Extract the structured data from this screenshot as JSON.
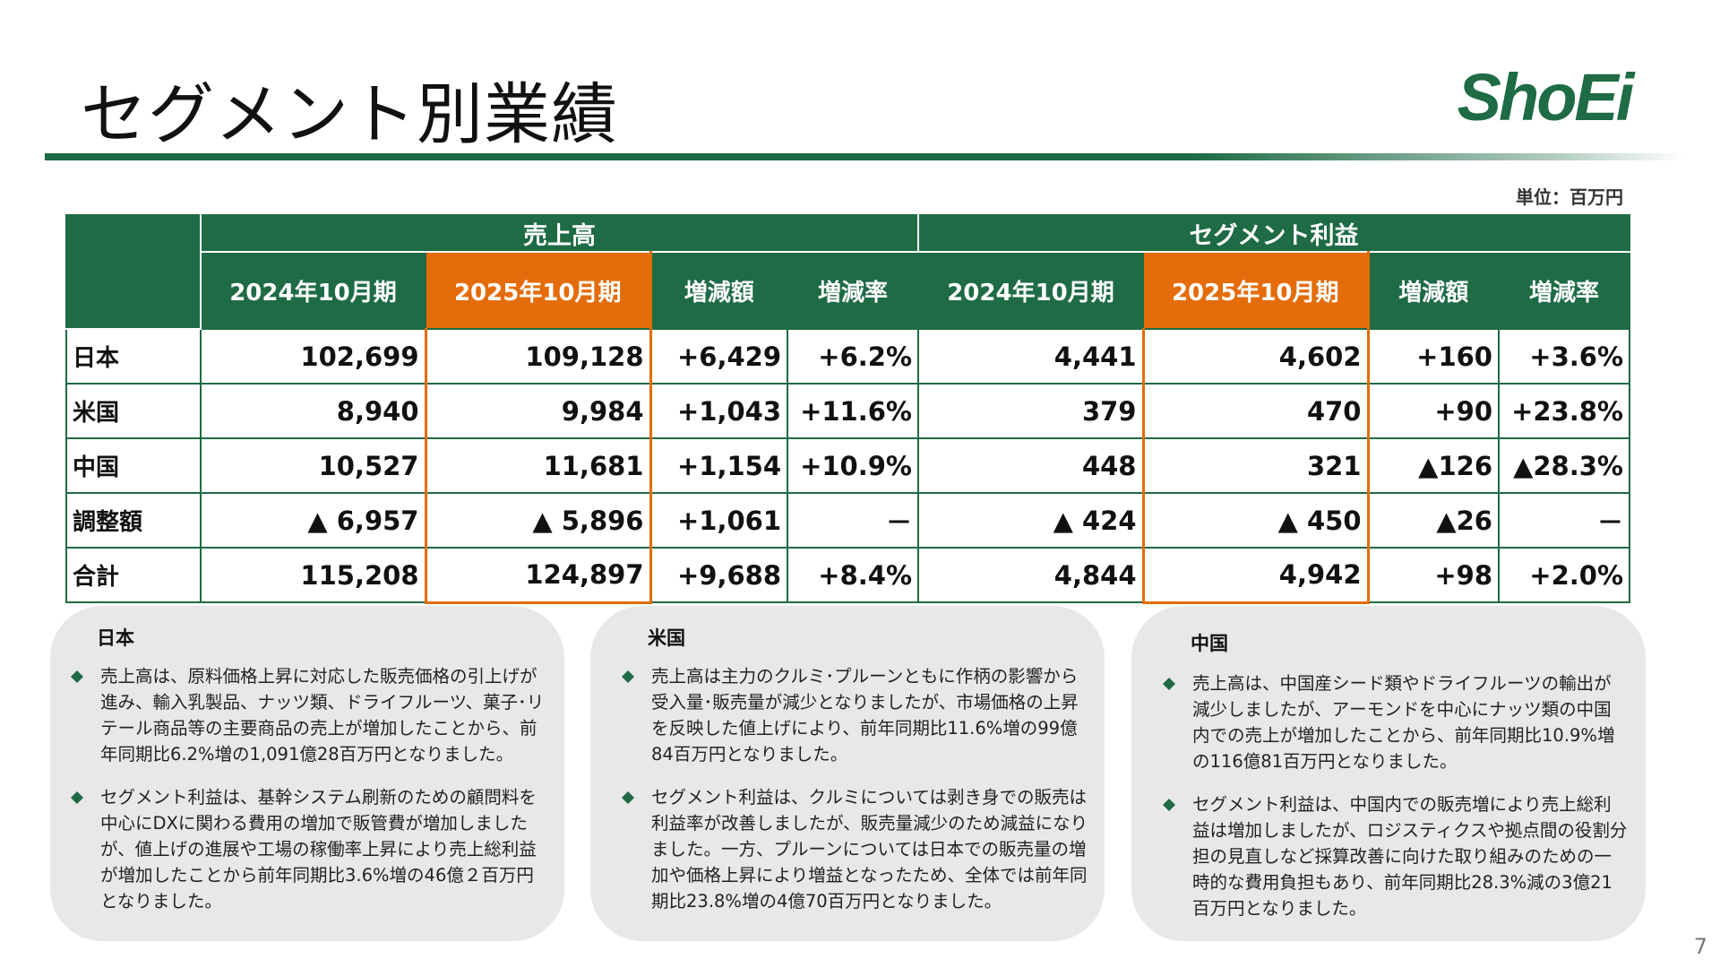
{
  "page": {
    "title": "セグメント別業績",
    "unit": "単位：百万円",
    "page_number": "7"
  },
  "logo": {
    "text": "ShoEi",
    "color": "#1e6b45"
  },
  "colors": {
    "green": "#1e6b45",
    "orange": "#e46c0a",
    "panel": "#e8e8e8"
  },
  "table": {
    "groups": [
      "売上高",
      "セグメント利益"
    ],
    "columns": [
      "2024年10月期",
      "2025年10月期",
      "増減額",
      "増減率",
      "2024年10月期",
      "2025年10月期",
      "増減額",
      "増減率"
    ],
    "rows": [
      {
        "label": "日本",
        "cells": [
          "102,699",
          "109,128",
          "+6,429",
          "+6.2%",
          "4,441",
          "4,602",
          "+160",
          "+3.6%"
        ]
      },
      {
        "label": "米国",
        "cells": [
          "8,940",
          "9,984",
          "+1,043",
          "+11.6%",
          "379",
          "470",
          "+90",
          "+23.8%"
        ]
      },
      {
        "label": "中国",
        "cells": [
          "10,527",
          "11,681",
          "+1,154",
          "+10.9%",
          "448",
          "321",
          "▲126",
          "▲28.3%"
        ]
      },
      {
        "label": "調整額",
        "cells": [
          "▲ 6,957",
          "▲ 5,896",
          "+1,061",
          "－",
          "▲ 424",
          "▲ 450",
          "▲26",
          "－"
        ]
      },
      {
        "label": "合計",
        "cells": [
          "115,208",
          "124,897",
          "+9,688",
          "+8.4%",
          "4,844",
          "4,942",
          "+98",
          "+2.0%"
        ]
      }
    ]
  },
  "panels": [
    {
      "title": "日本",
      "bullet_icon": "diamond-icon",
      "bullets": [
        "売上高は、原料価格上昇に対応した販売価格の引上げが進み、輸入乳製品、ナッツ類、ドライフルーツ、菓子･リテール商品等の主要商品の売上が増加したことから、前年同期比6.2%増の1,091億28百万円となりました。",
        "セグメント利益は、基幹システム刷新のための顧問料を中心にDXに関わる費用の増加で販管費が増加しましたが、値上げの進展や工場の稼働率上昇により売上総利益が増加したことから前年同期比3.6%増の46億２百万円となりました。"
      ]
    },
    {
      "title": "米国",
      "bullet_icon": "diamond-icon",
      "bullets": [
        "売上高は主力のクルミ･プルーンともに作柄の影響から受入量･販売量が減少となりましたが、市場価格の上昇を反映した値上げにより、前年同期比11.6%増の99億84百万円となりました。",
        "セグメント利益は、クルミについては剥き身での販売は利益率が改善しましたが、販売量減少のため減益になりました。一方、プルーンについては日本での販売量の増加や価格上昇により増益となったため、全体では前年同期比23.8%増の4億70百万円となりました。"
      ]
    },
    {
      "title": "中国",
      "bullet_icon": "diamond-icon",
      "bullets": [
        "売上高は、中国産シード類やドライフルーツの輸出が減少しましたが、アーモンドを中心にナッツ類の中国内での売上が増加したことから、前年同期比10.9%増の116億81百万円となりました。",
        "セグメント利益は、中国内での販売増により売上総利益は増加しましたが、ロジスティクスや拠点間の役割分担の見直しなど採算改善に向けた取り組みのための一時的な費用負担もあり、前年同期比28.3%減の3億21百万円となりました。"
      ]
    }
  ]
}
